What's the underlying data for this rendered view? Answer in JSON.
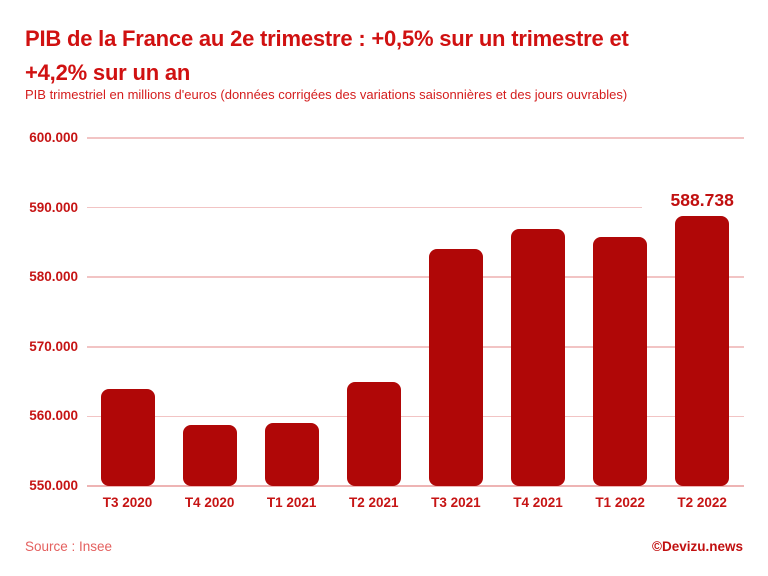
{
  "header": {
    "title_line1": "PIB de la France au 2e trimestre : +0,5% sur un trimestre et",
    "title_line2": "+4,2% sur un an",
    "subtitle": "PIB trimestriel en millions d'euros (données corrigées des variations saisonnières et des jours ouvrables)"
  },
  "footer": {
    "source": "Source : Insee",
    "credit": "©Devizu.news"
  },
  "colors": {
    "title": "#d01111",
    "subtitle": "#d41d1d",
    "bar": "#b00707",
    "tick_label": "#c61414",
    "gridline": "#f2c4c4",
    "baseline": "#eeb4b4",
    "value_label": "#c11010",
    "source": "#e4605f",
    "credit": "#c11010",
    "background": "#ffffff"
  },
  "chart_data": {
    "type": "bar",
    "title": "PIB de la France au 2e trimestre : +0,5% sur un trimestre et +4,2% sur un an",
    "subtitle": "PIB trimestriel en millions d'euros (données corrigées des variations saisonnières et des jours ouvrables)",
    "categories": [
      "T3 2020",
      "T4 2020",
      "T1 2021",
      "T2 2021",
      "T3 2021",
      "T4 2021",
      "T1 2022",
      "T2 2022"
    ],
    "values": [
      563900,
      558800,
      559000,
      565000,
      584000,
      586900,
      585800,
      588738
    ],
    "ylim": [
      550000,
      600000
    ],
    "y_ticks": [
      {
        "value": 600000,
        "label": "600.000"
      },
      {
        "value": 590000,
        "label": "590.000"
      },
      {
        "value": 580000,
        "label": "580.000"
      },
      {
        "value": 570000,
        "label": "570.000"
      },
      {
        "value": 560000,
        "label": "560.000"
      },
      {
        "value": 550000,
        "label": "550.000"
      }
    ],
    "data_labels": [
      {
        "index": 7,
        "text": "588.738"
      }
    ],
    "grid": true,
    "legend": false,
    "xlabel": "",
    "ylabel": ""
  }
}
